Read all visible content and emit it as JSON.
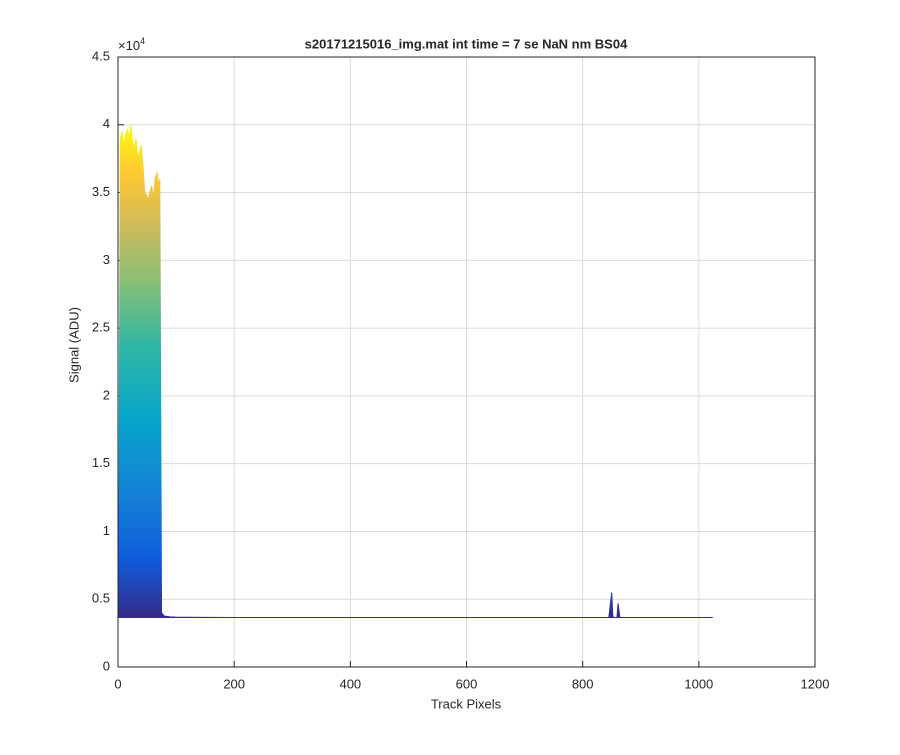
{
  "chart_data": {
    "type": "area",
    "title": "s20171215016_img.mat int time = 7 se  NaN nm BS04",
    "x_label": "Track Pixels",
    "y_label": "Signal (ADU)",
    "y_multiplier": {
      "base": "×10",
      "exponent": "4"
    },
    "x": [
      1,
      4,
      7,
      10,
      13,
      16,
      19,
      22,
      25,
      28,
      31,
      34,
      37,
      40,
      43,
      46,
      49,
      52,
      55,
      58,
      61,
      64,
      67,
      70,
      72,
      75,
      80,
      90,
      100,
      150,
      200,
      300,
      400,
      500,
      600,
      700,
      800,
      845,
      850,
      852,
      855,
      859,
      861,
      864,
      900,
      1000,
      1024
    ],
    "values": [
      0.37,
      3.9,
      3.95,
      3.85,
      3.92,
      3.97,
      3.9,
      4.0,
      3.88,
      3.82,
      3.9,
      3.75,
      3.8,
      3.85,
      3.7,
      3.5,
      3.48,
      3.45,
      3.5,
      3.55,
      3.45,
      3.6,
      3.65,
      3.55,
      3.6,
      0.4,
      0.375,
      0.37,
      0.368,
      0.366,
      0.365,
      0.365,
      0.365,
      0.365,
      0.365,
      0.365,
      0.365,
      0.365,
      0.55,
      0.37,
      0.365,
      0.365,
      0.47,
      0.365,
      0.365,
      0.365,
      0.365
    ],
    "xlim": [
      0,
      1200
    ],
    "xticks": [
      0,
      200,
      400,
      600,
      800,
      1000,
      1200
    ],
    "ylim": [
      0,
      4.5
    ],
    "yticks": [
      0,
      0.5,
      1,
      1.5,
      2,
      2.5,
      3,
      3.5,
      4,
      4.5
    ],
    "grid": true
  }
}
